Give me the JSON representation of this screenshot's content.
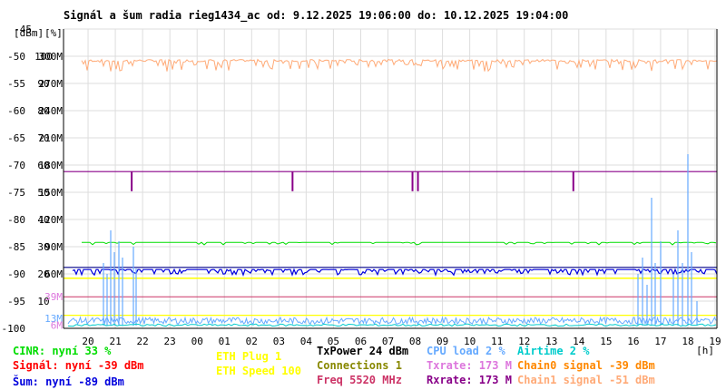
{
  "chart_data": {
    "type": "line",
    "title": "Signál a šum radia rieg1434_ac od: 9.12.2025 19:06:00 do: 10.12.2025 19:04:00",
    "y_header": {
      "dbm": "[dBm]",
      "pct": "[%]"
    },
    "x_unit": "[h]",
    "x_ticks": [
      "20",
      "21",
      "22",
      "23",
      "00",
      "01",
      "02",
      "03",
      "04",
      "05",
      "06",
      "07",
      "08",
      "09",
      "10",
      "11",
      "12",
      "13",
      "14",
      "15",
      "16",
      "17",
      "18",
      "19"
    ],
    "x_range_hours": [
      19.1,
      43.0667
    ],
    "y_left_dbm": {
      "ticks": [
        -45,
        -50,
        -55,
        -60,
        -65,
        -70,
        -75,
        -80,
        -85,
        -90,
        -95,
        -100
      ],
      "range": [
        -100,
        -45
      ]
    },
    "y_pct": {
      "ticks": [
        100,
        90,
        80,
        70,
        60,
        50,
        40,
        30,
        20,
        10
      ],
      "at_dbm": [
        -50,
        -55,
        -60,
        -65,
        -70,
        -75,
        -80,
        -85,
        -90,
        -95
      ]
    },
    "y_rate": {
      "ticks": [
        "300M",
        "270M",
        "240M",
        "210M",
        "180M",
        "150M",
        "120M",
        "90M",
        "60M"
      ],
      "at_dbm": [
        -50,
        -55,
        -60,
        -65,
        -70,
        -75,
        -80,
        -85,
        -90
      ]
    },
    "y_rate_markers": [
      {
        "label": "39M",
        "at_dbm": -94.2,
        "color": "#dd77dd"
      },
      {
        "label": "13M",
        "at_dbm": -98.2,
        "color": "#66aaff"
      },
      {
        "label": "6M",
        "at_dbm": -99.4,
        "color": "#dd77dd"
      }
    ],
    "series": [
      {
        "name": "Signál",
        "value_dbm": -39,
        "color": "#ff0000"
      },
      {
        "name": "Šum",
        "value_dbm": -89,
        "color": "#0000dd"
      },
      {
        "name": "CINR",
        "value_pct": 33,
        "color": "#00dd00"
      },
      {
        "name": "ETH Plug",
        "value": 1,
        "color": "#ffff00"
      },
      {
        "name": "ETH Speed",
        "value": 100,
        "color": "#ffff00"
      },
      {
        "name": "Connections",
        "value": 1,
        "color": "#888800"
      },
      {
        "name": "CPU load",
        "value_pct": 2,
        "color": "#66aaff"
      },
      {
        "name": "Airtime",
        "value_pct": 2,
        "color": "#00cccc"
      },
      {
        "name": "Txrate",
        "value_m": 173,
        "color": "#dd77dd"
      },
      {
        "name": "Rxrate",
        "value_m": 173,
        "color": "#880088"
      },
      {
        "name": "Chain0 signal",
        "value_dbm": -39,
        "color": "#ff8800"
      },
      {
        "name": "Chain1 signal",
        "value_dbm": -51,
        "color": "#ffaa77"
      }
    ],
    "txpower_dbm": 24,
    "freq_mhz": 5520,
    "txrate_dips_hours": [
      21.6,
      27.5,
      31.9,
      32.1,
      37.8
    ],
    "grid": true,
    "legend": "bottom"
  },
  "legend": {
    "cinr": "CINR: nyní 33 %",
    "signal": "Signál: nyní -39 dBm",
    "noise": "Šum: nyní -89 dBm",
    "eth_plug": "ETH Plug 1",
    "eth_speed": "ETH Speed 100",
    "txpower": "TxPower 24 dBm",
    "connections": "Connections 1",
    "freq": "Freq 5520 MHz",
    "cpu": "CPU load 2 %",
    "txrate": "Txrate: 173 M",
    "rxrate": "Rxrate: 173 M",
    "airtime": "Airtime 2 %",
    "chain0": "Chain0 signal -39 dBm",
    "chain1": "Chain1 signal -51 dBm"
  }
}
